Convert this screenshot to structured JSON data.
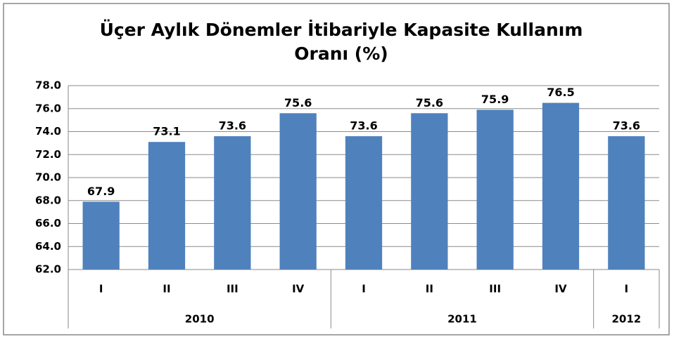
{
  "chart_data": {
    "type": "bar",
    "title_lines": [
      "Üçer Aylık Dönemler İtibariyle Kapasite Kullanım",
      "Oranı (%)"
    ],
    "categories": [
      "I",
      "II",
      "III",
      "IV",
      "I",
      "II",
      "III",
      "IV",
      "I"
    ],
    "groups": [
      {
        "name": "2010",
        "span": 4
      },
      {
        "name": "2011",
        "span": 4
      },
      {
        "name": "2012",
        "span": 1
      }
    ],
    "values": [
      67.9,
      73.1,
      73.6,
      75.6,
      73.6,
      75.6,
      75.9,
      76.5,
      73.6
    ],
    "color": "#4f81bd",
    "ylim": [
      62,
      78
    ],
    "yticks": [
      {
        "value": 62,
        "label": "62.0"
      },
      {
        "value": 64,
        "label": "64.0"
      },
      {
        "value": 66,
        "label": "66.0"
      },
      {
        "value": 68,
        "label": "68.0"
      },
      {
        "value": 70,
        "label": "70.0"
      },
      {
        "value": 72,
        "label": "72.0"
      },
      {
        "value": 74,
        "label": "74.0"
      },
      {
        "value": 76,
        "label": "76.0"
      },
      {
        "value": 78,
        "label": "78.0"
      }
    ],
    "grid": true
  }
}
